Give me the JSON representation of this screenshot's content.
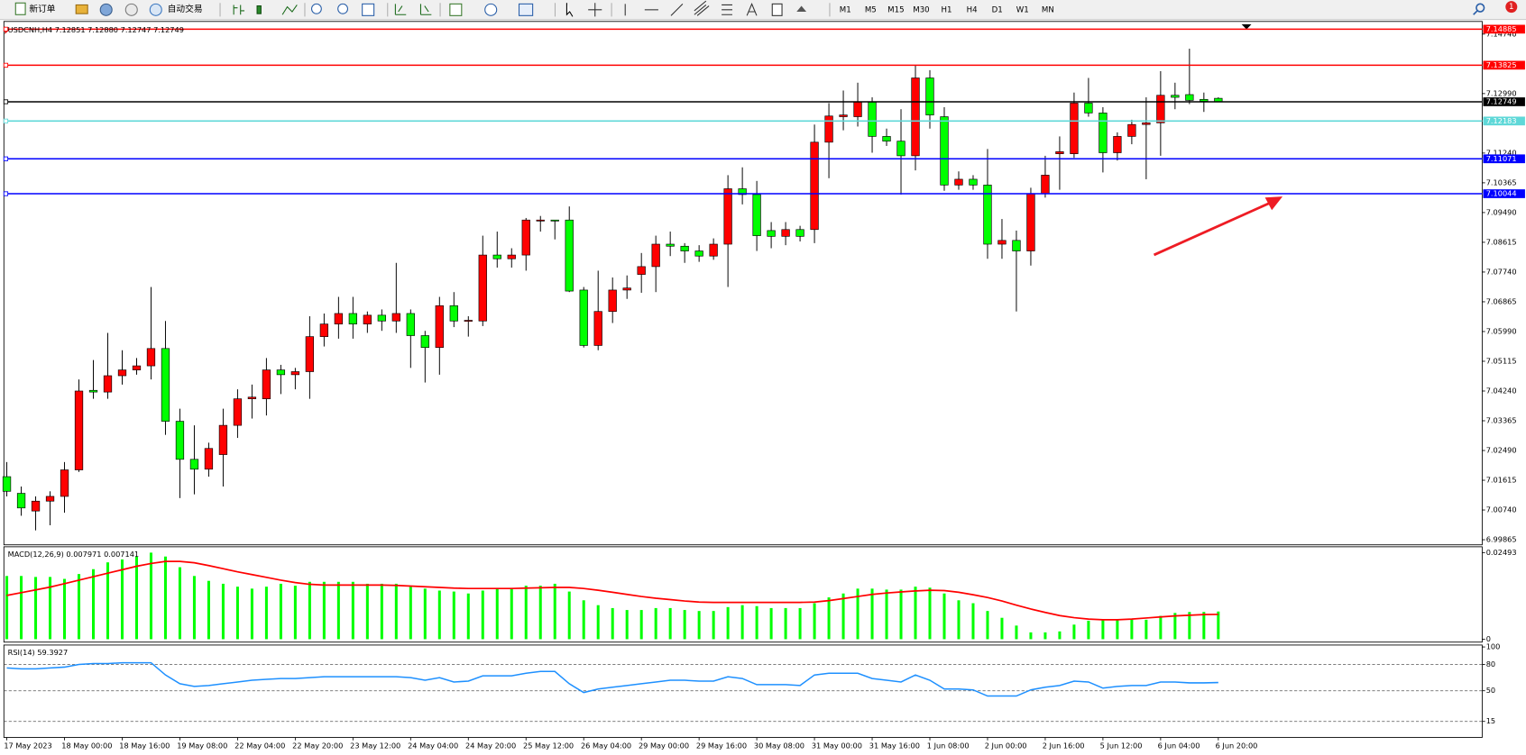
{
  "toolbar": {
    "new_order": "新订单",
    "auto_trading": "自动交易",
    "timeframes": [
      "M1",
      "M5",
      "M15",
      "M30",
      "H1",
      "H4",
      "D1",
      "W1",
      "MN"
    ],
    "badge": "1"
  },
  "chart_data": [
    {
      "type": "candlestick",
      "title": "USDCNH,H4 7.12851 7.12880 7.12747 7.12749",
      "up_color": "#ff0000",
      "down_color": "#00ff00",
      "categories": [
        "17 May 2023",
        null,
        null,
        null,
        "18 May 00:00",
        null,
        null,
        null,
        "18 May 16:00",
        null,
        null,
        null,
        "19 May 08:00",
        null,
        null,
        null,
        "22 May 04:00",
        null,
        null,
        null,
        "22 May 20:00",
        null,
        null,
        null,
        "23 May 12:00",
        null,
        null,
        null,
        "24 May 04:00",
        null,
        null,
        null,
        "24 May 20:00",
        null,
        null,
        null,
        "25 May 12:00",
        null,
        null,
        null,
        "26 May 04:00",
        null,
        null,
        null,
        "29 May 00:00",
        null,
        null,
        null,
        "29 May 16:00",
        null,
        null,
        null,
        "30 May 08:00",
        null,
        null,
        null,
        "31 May 00:00",
        null,
        null,
        null,
        "31 May 16:00",
        null,
        null,
        null,
        "1 Jun 08:00",
        null,
        null,
        null,
        "2 Jun 00:00",
        null,
        null,
        null,
        "2 Jun 16:00",
        null,
        null,
        null,
        "5 Jun 12:00",
        null,
        null,
        null,
        "6 Jun 04:00",
        null,
        null,
        null,
        "6 Jun 20:00"
      ],
      "open": [
        7.0172,
        7.0123,
        7.0071,
        7.01,
        7.0114,
        7.0192,
        7.0426,
        7.0421,
        7.0469,
        7.0486,
        7.0498,
        7.0549,
        7.0335,
        7.0223,
        7.0194,
        7.0237,
        7.0323,
        7.0401,
        7.0401,
        7.0486,
        7.0472,
        7.0481,
        7.0584,
        7.0621,
        7.0652,
        7.0621,
        7.0647,
        7.063,
        7.0652,
        7.0587,
        7.0552,
        7.0675,
        7.063,
        7.063,
        7.0824,
        7.0813,
        7.0824,
        7.0924,
        7.0927,
        7.0927,
        7.0721,
        7.0558,
        7.0658,
        7.0721,
        7.0767,
        7.079,
        7.0856,
        7.085,
        7.0836,
        7.0821,
        7.0856,
        7.1019,
        7.1002,
        7.0896,
        7.0879,
        7.0899,
        7.0899,
        7.1156,
        7.1231,
        7.1231,
        7.1274,
        7.1173,
        7.1159,
        7.1116,
        7.1345,
        7.1231,
        7.103,
        7.1047,
        7.103,
        7.0856,
        7.0867,
        7.0836,
        7.1005,
        7.1122,
        7.1122,
        7.1271,
        7.1242,
        7.1125,
        7.1173,
        7.1208,
        7.1213,
        7.1294,
        7.1296,
        7.1282,
        7.12851
      ],
      "high": [
        7.0215,
        7.0143,
        7.0114,
        7.0129,
        7.0215,
        7.0458,
        7.0515,
        7.0595,
        7.0544,
        7.0521,
        7.073,
        7.063,
        7.0372,
        7.0323,
        7.0272,
        7.0372,
        7.0429,
        7.0443,
        7.0521,
        7.0501,
        7.0492,
        7.0644,
        7.0652,
        7.0701,
        7.0701,
        7.0658,
        7.0664,
        7.0801,
        7.0664,
        7.0601,
        7.0701,
        7.0715,
        7.0644,
        7.0881,
        7.0893,
        7.0844,
        7.0933,
        7.0939,
        7.0927,
        7.0967,
        7.073,
        7.0778,
        7.0758,
        7.0764,
        7.083,
        7.0881,
        7.0893,
        7.0859,
        7.0853,
        7.0873,
        7.1059,
        7.1082,
        7.1042,
        7.0921,
        7.0921,
        7.091,
        7.1208,
        7.1271,
        7.1308,
        7.1331,
        7.1288,
        7.1196,
        7.1253,
        7.1382,
        7.1368,
        7.1259,
        7.107,
        7.1059,
        7.1136,
        7.093,
        7.0896,
        7.1022,
        7.1116,
        7.1173,
        7.1302,
        7.1345,
        7.1259,
        7.1185,
        7.1222,
        7.1288,
        7.1365,
        7.1331,
        7.1431,
        7.1302,
        7.1288
      ],
      "low": [
        7.0114,
        7.0057,
        7.0014,
        7.0029,
        7.0066,
        7.0186,
        7.0401,
        7.0401,
        7.0443,
        7.0472,
        7.0458,
        7.0295,
        7.0109,
        7.012,
        7.0172,
        7.0143,
        7.0286,
        7.0343,
        7.0352,
        7.0415,
        7.0429,
        7.0401,
        7.0555,
        7.0578,
        7.0578,
        7.0595,
        7.0601,
        7.0595,
        7.0492,
        7.0449,
        7.0472,
        7.0612,
        7.0584,
        7.0615,
        7.0787,
        7.0787,
        7.0778,
        7.0893,
        7.087,
        7.0715,
        7.0552,
        7.0544,
        7.0624,
        7.0695,
        7.0713,
        7.0715,
        7.0821,
        7.0801,
        7.0804,
        7.081,
        7.073,
        7.0973,
        7.0836,
        7.0844,
        7.0853,
        7.0864,
        7.0859,
        7.105,
        7.1191,
        7.1202,
        7.1125,
        7.1145,
        7.1002,
        7.1073,
        7.1196,
        7.1013,
        7.1016,
        7.1016,
        7.0813,
        7.0813,
        7.0658,
        7.0793,
        7.0993,
        7.1016,
        7.111,
        7.1231,
        7.1067,
        7.1102,
        7.115,
        7.1047,
        7.1116,
        7.1253,
        7.1268,
        7.1245,
        7.12747
      ],
      "close": [
        7.0129,
        7.008,
        7.01,
        7.0114,
        7.0192,
        7.0424,
        7.0421,
        7.0469,
        7.0486,
        7.0498,
        7.0549,
        7.0335,
        7.0223,
        7.0194,
        7.0255,
        7.0323,
        7.0401,
        7.0406,
        7.0486,
        7.0472,
        7.0481,
        7.0584,
        7.0621,
        7.0652,
        7.0621,
        7.0647,
        7.063,
        7.0652,
        7.0587,
        7.0552,
        7.0675,
        7.063,
        7.0632,
        7.0824,
        7.0813,
        7.0824,
        7.0927,
        7.0927,
        7.0924,
        7.0718,
        7.0558,
        7.0658,
        7.0721,
        7.0727,
        7.079,
        7.0856,
        7.085,
        7.0836,
        7.0821,
        7.0856,
        7.1019,
        7.1002,
        7.0881,
        7.0879,
        7.0899,
        7.0879,
        7.1156,
        7.1233,
        7.1236,
        7.1274,
        7.1173,
        7.1159,
        7.1116,
        7.1345,
        7.1236,
        7.103,
        7.1047,
        7.103,
        7.0856,
        7.0867,
        7.0836,
        7.1005,
        7.1059,
        7.1128,
        7.1271,
        7.1242,
        7.1125,
        7.1173,
        7.1208,
        7.1213,
        7.1294,
        7.1288,
        7.1279,
        7.1276,
        7.12749
      ],
      "ylim": [
        6.99715,
        7.15112
      ],
      "yticks": [
        {
          "value": 7.1474,
          "label": "7.14740"
        },
        {
          "value": 7.1299,
          "label": "7.12990"
        },
        {
          "value": 7.1124,
          "label": "7.11240"
        },
        7.10365,
        {
          "value": 7.0949,
          "label": "7.09490"
        },
        7.08615,
        {
          "value": 7.0774,
          "label": "7.07740"
        },
        7.06865,
        {
          "value": 7.0599,
          "label": "7.05990"
        },
        7.05115,
        {
          "value": 7.0424,
          "label": "7.04240"
        },
        7.03365,
        {
          "value": 7.0249,
          "label": "7.02490"
        },
        7.01615,
        {
          "value": 7.0074,
          "label": "7.00740"
        },
        6.99865
      ],
      "hlines": [
        {
          "value": 7.14885,
          "color": "#ff0000"
        },
        {
          "value": 7.13825,
          "color": "#ff0000"
        },
        {
          "value": 7.12749,
          "color": "#000000"
        },
        {
          "value": 7.12183,
          "color": "#5fd8d8"
        },
        {
          "value": 7.11071,
          "color": "#0000ff"
        },
        {
          "value": 7.10044,
          "color": "#0000ff"
        }
      ]
    },
    {
      "type": "macd",
      "title": "MACD(12,26,9) 0.007971 0.007141",
      "histogram": {
        "color": "#00ff00",
        "values": [
          0.0182,
          0.0182,
          0.01792,
          0.01792,
          0.01736,
          0.01876,
          0.02016,
          0.02212,
          0.02296,
          0.0238,
          0.02492,
          0.0238,
          0.02072,
          0.0182,
          0.0168,
          0.01596,
          0.01512,
          0.01456,
          0.01512,
          0.01596,
          0.0154,
          0.01652,
          0.01652,
          0.01652,
          0.01652,
          0.01596,
          0.01596,
          0.01596,
          0.01512,
          0.01456,
          0.014,
          0.01372,
          0.01316,
          0.014,
          0.01456,
          0.01456,
          0.0154,
          0.0154,
          0.01596,
          0.01372,
          0.0112,
          0.0098,
          0.00896,
          0.0084,
          0.0084,
          0.00896,
          0.00896,
          0.0084,
          0.00812,
          0.00812,
          0.00924,
          0.0098,
          0.00952,
          0.00896,
          0.00896,
          0.00896,
          0.01036,
          0.01204,
          0.01316,
          0.01456,
          0.01456,
          0.01428,
          0.01428,
          0.01512,
          0.01484,
          0.01316,
          0.0112,
          0.01036,
          0.00812,
          0.00616,
          0.00392,
          0.00196,
          0.00196,
          0.00224,
          0.0042,
          0.00532,
          0.0056,
          0.0056,
          0.0056,
          0.0056,
          0.00672,
          0.00756,
          0.00784,
          0.00784,
          0.007971
        ]
      },
      "signal": {
        "color": "#ff0000",
        "values": [
          0.0126,
          0.0134,
          0.0142,
          0.015,
          0.016,
          0.017,
          0.018,
          0.019,
          0.02,
          0.021,
          0.0218,
          0.0224,
          0.0224,
          0.022,
          0.0212,
          0.0203,
          0.0194,
          0.0186,
          0.0178,
          0.017,
          0.0163,
          0.0158,
          0.0156,
          0.0156,
          0.0156,
          0.0156,
          0.0156,
          0.0155,
          0.0153,
          0.0151,
          0.0149,
          0.0147,
          0.0146,
          0.0146,
          0.0146,
          0.0146,
          0.0147,
          0.0148,
          0.0149,
          0.0149,
          0.0146,
          0.0141,
          0.0135,
          0.0129,
          0.0123,
          0.0118,
          0.0114,
          0.011,
          0.0107,
          0.0106,
          0.0106,
          0.0106,
          0.0106,
          0.0106,
          0.0106,
          0.0106,
          0.0107,
          0.0111,
          0.0117,
          0.0123,
          0.0129,
          0.0133,
          0.0136,
          0.0139,
          0.0141,
          0.014,
          0.0135,
          0.0128,
          0.012,
          0.011,
          0.0098,
          0.0087,
          0.0077,
          0.0068,
          0.0062,
          0.0058,
          0.0056,
          0.0056,
          0.0058,
          0.0061,
          0.0064,
          0.0067,
          0.0069,
          0.0071,
          0.007141
        ]
      },
      "ylim": [
        -0.00084,
        0.02661
      ],
      "yticks": [
        0.02493,
        0
      ]
    },
    {
      "type": "line",
      "title": "RSI(14) 59.3927",
      "color": "#1e90ff",
      "values": [
        76,
        75,
        75,
        76,
        77,
        80,
        81,
        81,
        82,
        82,
        82,
        68,
        58,
        55,
        56,
        58,
        60,
        62,
        63,
        64,
        64,
        65,
        66,
        66,
        66,
        66,
        66,
        66,
        65,
        62,
        65,
        60,
        61,
        67,
        67,
        67,
        70,
        72,
        72,
        58,
        48,
        52,
        54,
        56,
        58,
        60,
        62,
        62,
        61,
        61,
        66,
        64,
        57,
        57,
        57,
        56,
        68,
        70,
        70,
        70,
        64,
        62,
        60,
        68,
        62,
        52,
        52,
        51,
        44,
        44,
        44,
        51,
        54,
        56,
        61,
        60,
        53,
        55,
        56,
        56,
        60,
        60,
        59,
        59,
        59.3927
      ],
      "ylim": [
        -3.3,
        102.2
      ],
      "yticks": [
        100,
        80,
        50,
        15
      ],
      "levels": [
        80,
        50,
        15
      ]
    }
  ]
}
